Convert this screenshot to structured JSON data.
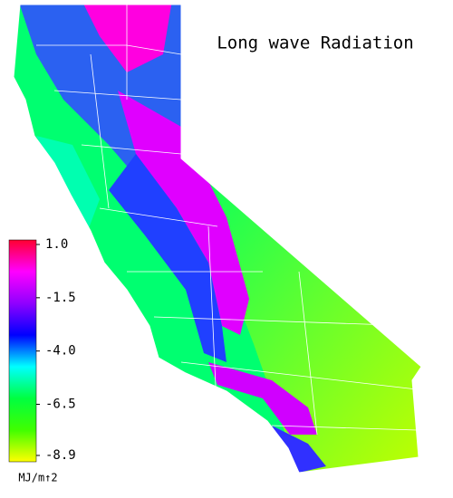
{
  "title": "Long wave Radiation",
  "legend": {
    "unit": "MJ/m↑2",
    "range": [
      -8.9,
      1.0
    ],
    "colors": [
      "#ff0030",
      "#ff00ff",
      "#9000ff",
      "#0000ff",
      "#00ffff",
      "#00ff40",
      "#40ff00",
      "#ffff00"
    ],
    "ticks": [
      {
        "value": 1.0,
        "label": "1.0"
      },
      -1.5,
      {
        "value": -4.0,
        "label": "-4.0"
      },
      -6.5,
      -8.9
    ]
  }
}
